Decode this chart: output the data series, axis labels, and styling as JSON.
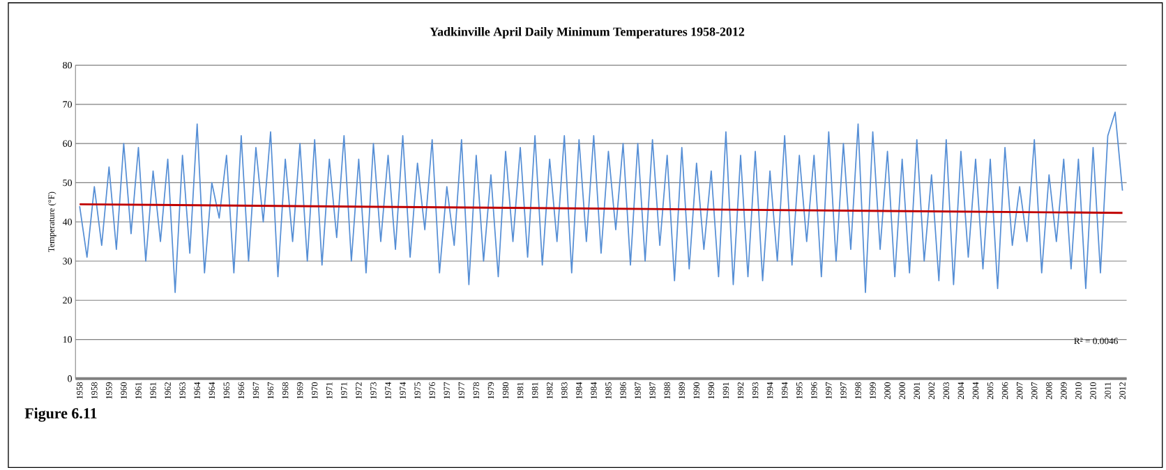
{
  "chart_data": {
    "type": "line",
    "title": "Yadkinville April Daily Minimum Temperatures 1958-2012",
    "ylabel": "Temperature (°F)",
    "categories": [
      "1958",
      null,
      "1958",
      null,
      "1959",
      null,
      "1960",
      null,
      "1961",
      null,
      "1961",
      null,
      "1962",
      null,
      "1963",
      null,
      "1964",
      null,
      "1964",
      null,
      "1965",
      null,
      "1966",
      null,
      "1967",
      null,
      "1967",
      null,
      "1968",
      null,
      "1969",
      null,
      "1970",
      null,
      "1971",
      null,
      "1971",
      null,
      "1972",
      null,
      "1973",
      null,
      "1974",
      null,
      "1974",
      null,
      "1975",
      null,
      "1976",
      null,
      "1977",
      null,
      "1977",
      null,
      "1978",
      null,
      "1979",
      null,
      "1980",
      null,
      "1981",
      null,
      "1981",
      null,
      "1982",
      null,
      "1983",
      null,
      "1984",
      null,
      "1984",
      null,
      "1985",
      null,
      "1986",
      null,
      "1987",
      null,
      "1987",
      null,
      "1988",
      null,
      "1989",
      null,
      "1990",
      null,
      "1990",
      null,
      "1991",
      null,
      "1992",
      null,
      "1993",
      null,
      "1994",
      null,
      "1994",
      null,
      "1995",
      null,
      "1996",
      null,
      "1997",
      null,
      "1997",
      null,
      "1998",
      null,
      "1999",
      null,
      "2000",
      null,
      "2000",
      null,
      "2001",
      null,
      "2002",
      null,
      "2003",
      null,
      "2004",
      null,
      "2004",
      null,
      "2005",
      null,
      "2006",
      null,
      "2007",
      null,
      "2007",
      null,
      "2008",
      null,
      "2009",
      null,
      "2010",
      null,
      "2010",
      null,
      "2011",
      null,
      "2012"
    ],
    "series": [
      {
        "color": "#558ed5",
        "values": [
          44,
          31,
          49,
          34,
          54,
          33,
          60,
          37,
          59,
          30,
          53,
          35,
          56,
          22,
          57,
          32,
          65,
          27,
          50,
          41,
          57,
          27,
          62,
          30,
          59,
          40,
          63,
          26,
          56,
          35,
          60,
          30,
          61,
          29,
          56,
          36,
          62,
          30,
          56,
          27,
          60,
          35,
          57,
          33,
          62,
          31,
          55,
          38,
          61,
          27,
          49,
          34,
          61,
          24,
          57,
          30,
          52,
          26,
          58,
          35,
          59,
          31,
          62,
          29,
          56,
          35,
          62,
          27,
          61,
          35,
          62,
          32,
          58,
          38,
          60,
          29,
          60,
          30,
          61,
          34,
          57,
          25,
          59,
          28,
          55,
          33,
          53,
          26,
          63,
          24,
          57,
          26,
          58,
          25,
          53,
          30,
          62,
          29,
          57,
          35,
          57,
          26,
          63,
          30,
          60,
          33,
          65,
          22,
          63,
          33,
          58,
          26,
          56,
          27,
          61,
          30,
          52,
          25,
          61,
          24,
          58,
          31,
          56,
          28,
          56,
          23,
          59,
          34,
          49,
          35,
          61,
          27,
          52,
          35,
          56,
          28,
          56,
          23,
          59,
          27,
          62,
          68,
          48
        ]
      },
      {
        "type": "line",
        "color": "#c00000",
        "values": [
          44.5,
          null,
          null,
          null,
          null,
          null,
          null,
          null,
          null,
          null,
          null,
          null,
          null,
          null,
          null,
          null,
          null,
          null,
          null,
          null,
          null,
          null,
          null,
          null,
          null,
          null,
          null,
          null,
          null,
          null,
          null,
          null,
          null,
          null,
          null,
          null,
          null,
          null,
          null,
          null,
          null,
          null,
          null,
          null,
          null,
          null,
          null,
          null,
          null,
          null,
          null,
          null,
          null,
          null,
          null,
          null,
          null,
          null,
          null,
          null,
          null,
          null,
          null,
          null,
          null,
          null,
          null,
          null,
          null,
          null,
          null,
          null,
          null,
          null,
          null,
          null,
          null,
          null,
          null,
          null,
          null,
          null,
          null,
          null,
          null,
          null,
          null,
          null,
          null,
          null,
          null,
          null,
          null,
          null,
          null,
          null,
          null,
          null,
          null,
          null,
          null,
          null,
          null,
          null,
          null,
          null,
          null,
          null,
          null,
          null,
          null,
          null,
          null,
          null,
          null,
          null,
          null,
          null,
          null,
          null,
          null,
          null,
          null,
          null,
          null,
          null,
          null,
          null,
          null,
          null,
          null,
          null,
          null,
          null,
          null,
          null,
          null,
          null,
          null,
          null,
          null,
          null,
          42.3
        ]
      }
    ],
    "ylim": [
      0,
      80
    ],
    "yticks": [
      0,
      10,
      20,
      30,
      40,
      50,
      60,
      70,
      80
    ],
    "grid": "y",
    "annotations": [
      "R² = 0.0046",
      "Figure 6.11"
    ]
  }
}
